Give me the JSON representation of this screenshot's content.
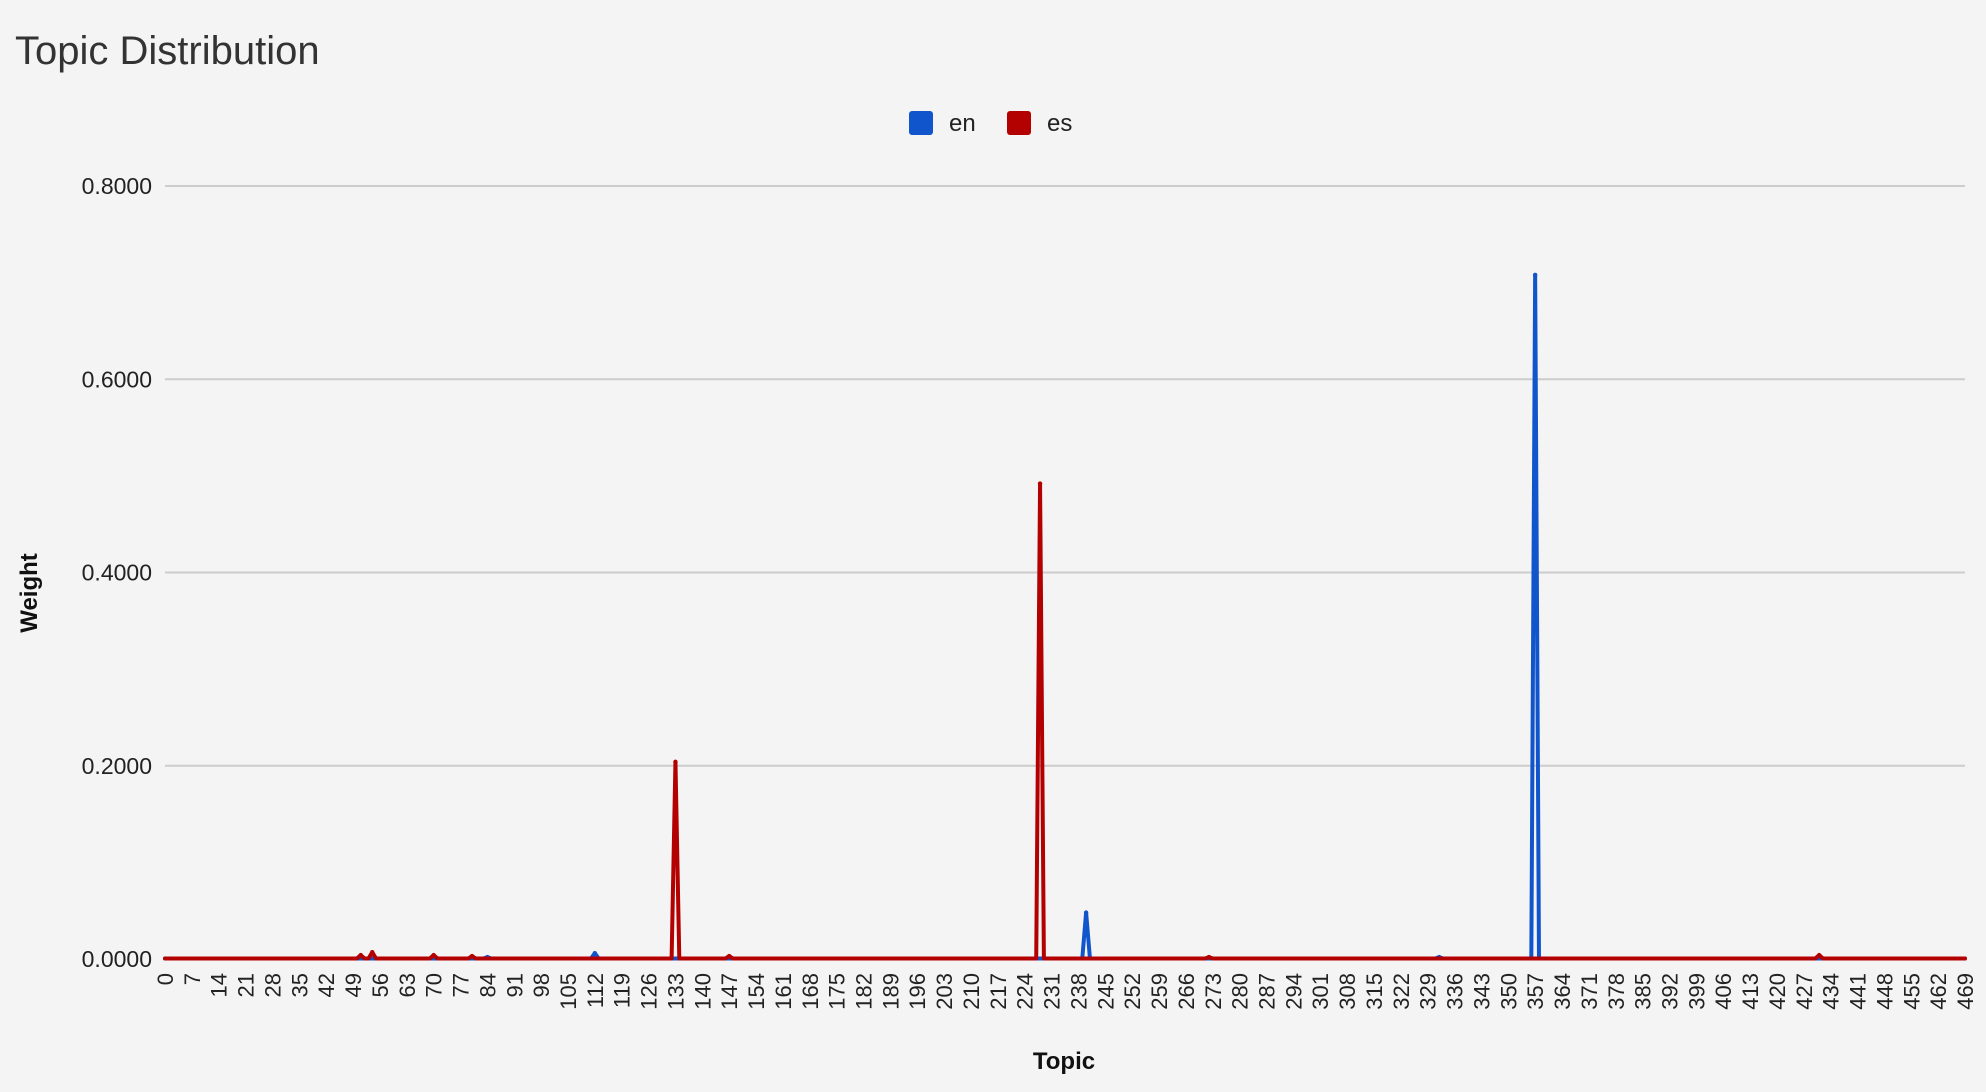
{
  "chart_data": {
    "type": "line",
    "title": "Topic Distribution",
    "xlabel": "Topic",
    "ylabel": "Weight",
    "ylim": [
      0,
      0.8
    ],
    "xlim": [
      0,
      469
    ],
    "y_ticks": [
      "0.0000",
      "0.2000",
      "0.4000",
      "0.6000",
      "0.8000"
    ],
    "y_tick_values": [
      0,
      0.2,
      0.4,
      0.6,
      0.8
    ],
    "x_ticks": [
      0,
      7,
      14,
      21,
      28,
      35,
      42,
      49,
      56,
      63,
      70,
      77,
      84,
      91,
      98,
      105,
      112,
      119,
      126,
      133,
      140,
      147,
      154,
      161,
      168,
      175,
      182,
      189,
      196,
      203,
      210,
      217,
      224,
      231,
      238,
      245,
      252,
      259,
      266,
      273,
      280,
      287,
      294,
      301,
      308,
      315,
      322,
      329,
      336,
      343,
      350,
      357,
      364,
      371,
      378,
      385,
      392,
      399,
      406,
      413,
      420,
      427,
      434,
      441,
      448,
      455,
      462,
      469
    ],
    "grid": true,
    "legend_position": "top",
    "baseline": 0.0005,
    "series": [
      {
        "name": "en",
        "color": "#1155cc",
        "peaks": [
          {
            "x": 84,
            "y": 0.002
          },
          {
            "x": 112,
            "y": 0.006
          },
          {
            "x": 240,
            "y": 0.048
          },
          {
            "x": 332,
            "y": 0.002
          },
          {
            "x": 357,
            "y": 0.708
          }
        ]
      },
      {
        "name": "es",
        "color": "#b30000",
        "peaks": [
          {
            "x": 51,
            "y": 0.004
          },
          {
            "x": 54,
            "y": 0.007
          },
          {
            "x": 70,
            "y": 0.004
          },
          {
            "x": 80,
            "y": 0.003
          },
          {
            "x": 133,
            "y": 0.204
          },
          {
            "x": 147,
            "y": 0.003
          },
          {
            "x": 228,
            "y": 0.492
          },
          {
            "x": 272,
            "y": 0.002
          },
          {
            "x": 431,
            "y": 0.004
          }
        ]
      }
    ]
  }
}
